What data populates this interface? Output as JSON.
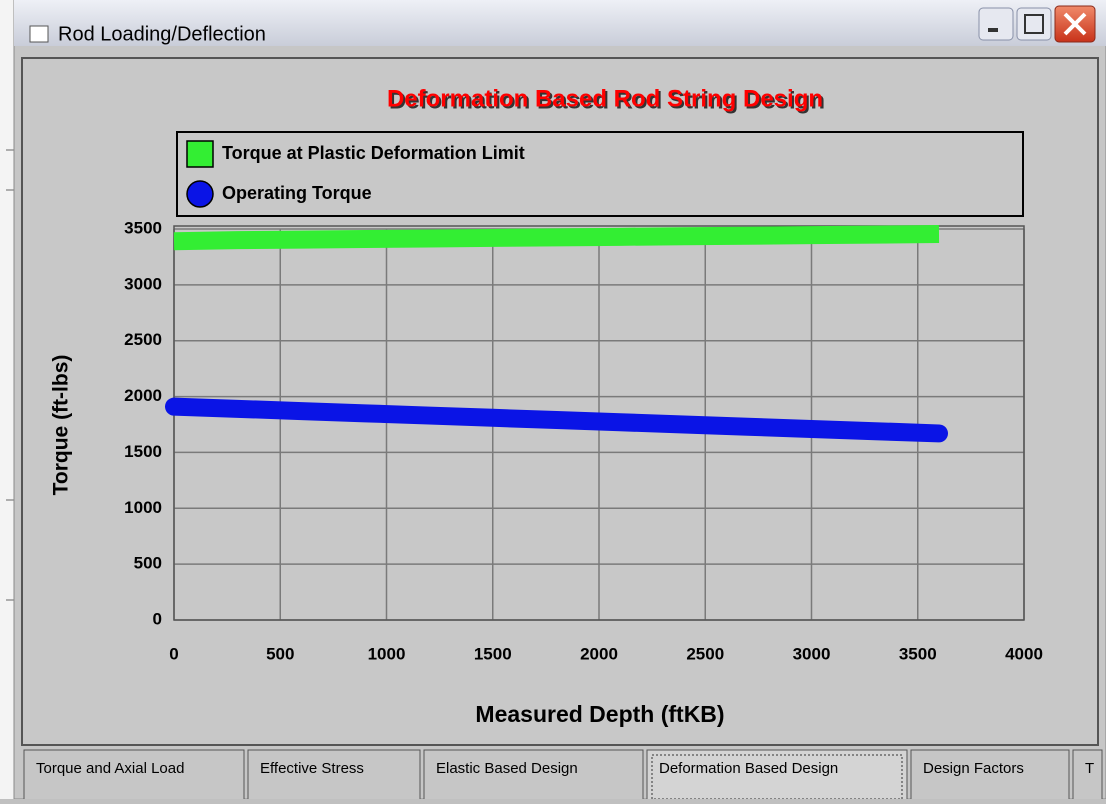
{
  "window": {
    "title": "Rod Loading/Deflection"
  },
  "chart_data": {
    "type": "line",
    "title": "Deformation Based Rod String Design",
    "x_label": "Measured Depth (ftKB)",
    "y_label": "Torque (ft-lbs)",
    "x": [
      0,
      300,
      600,
      900,
      1200,
      1500,
      1800,
      2100,
      2400,
      2700,
      3000,
      3300,
      3600
    ],
    "series": [
      {
        "name": "Torque at Plastic Deformation Limit",
        "color": "#33ee33",
        "marker": "square",
        "values": [
          3390,
          3400,
          3405,
          3410,
          3415,
          3420,
          3425,
          3430,
          3435,
          3440,
          3445,
          3450,
          3455
        ]
      },
      {
        "name": "Operating Torque",
        "color": "#0a14e6",
        "marker": "circle",
        "values": [
          1910,
          1890,
          1870,
          1850,
          1830,
          1810,
          1790,
          1770,
          1750,
          1730,
          1710,
          1690,
          1670
        ]
      }
    ],
    "xlim": [
      0,
      4000
    ],
    "xticks": [
      0,
      500,
      1000,
      1500,
      2000,
      2500,
      3000,
      3500,
      4000
    ],
    "ylim": [
      0,
      3500
    ],
    "yticks": [
      0,
      500,
      1000,
      1500,
      2000,
      2500,
      3000,
      3500
    ],
    "grid": true,
    "legend": "top"
  },
  "tabs": {
    "items": [
      "Torque and Axial Load",
      "Effective Stress",
      "Elastic Based Design",
      "Deformation Based Design",
      "Design Factors",
      "T"
    ],
    "active": 3
  }
}
